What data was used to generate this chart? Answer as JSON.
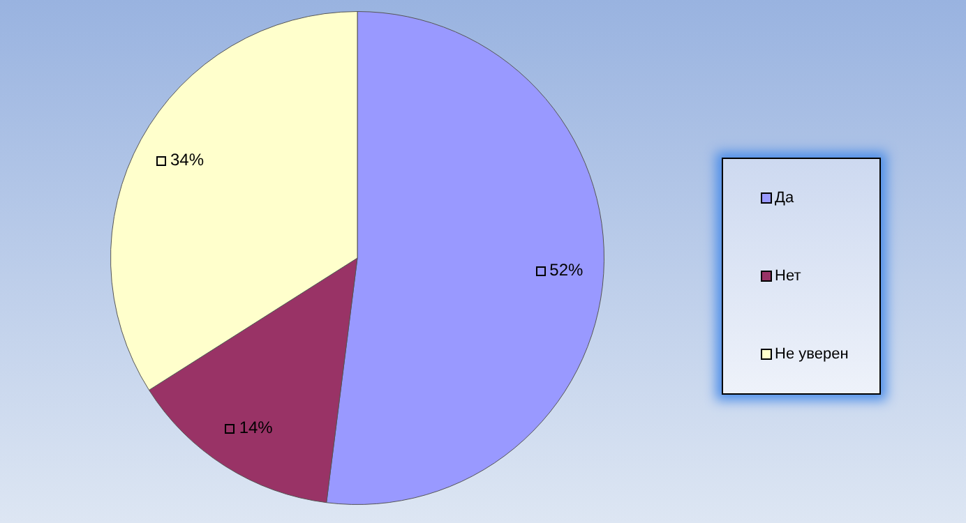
{
  "chart_data": {
    "type": "pie",
    "categories": [
      "Да",
      "Нет",
      "Не уверен"
    ],
    "values": [
      52,
      14,
      34
    ],
    "colors": [
      "#9999ff",
      "#993366",
      "#ffffcc"
    ],
    "value_labels": [
      "52%",
      "14%",
      "34%"
    ],
    "legend": "right"
  }
}
